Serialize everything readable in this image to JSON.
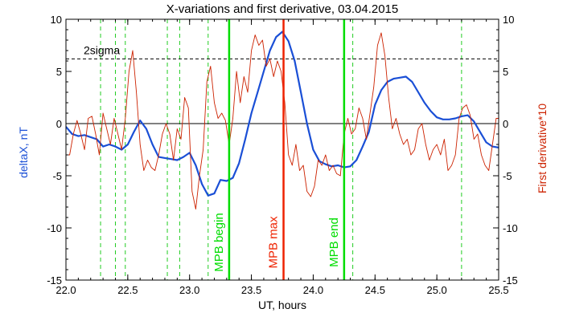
{
  "chart_data": {
    "type": "line",
    "title": "X-variations and first derivative, 03.04.2015",
    "xlabel": "UT, hours",
    "ylabel_left": "deltaX, nT",
    "ylabel_right": "First derivative*10",
    "xlim": [
      22.0,
      25.5
    ],
    "ylim_left": [
      -15,
      10
    ],
    "ylim_right": [
      -15,
      10
    ],
    "x_ticks": [
      22.0,
      22.5,
      23.0,
      23.5,
      24.0,
      24.5,
      25.0,
      25.5
    ],
    "x_tick_labels": [
      "22.0",
      "22.5",
      "23.0",
      "23.5",
      "24.0",
      "24.5",
      "25.0",
      "25.5"
    ],
    "y_ticks": [
      -15,
      -10,
      -5,
      0,
      5,
      10
    ],
    "y_tick_labels": [
      "-15",
      "-10",
      "-5",
      "0",
      "5",
      "10"
    ],
    "colors": {
      "deltaX": "#1a4fd6",
      "derivative": "#cc2200",
      "mpb_edge": "#00dd00",
      "mpb_max": "#ee2200",
      "dashed_green": "#22cc22"
    },
    "threshold": {
      "label": "2sigma",
      "value": 6.2
    },
    "zero_line": 0,
    "dashed_green_x": [
      22.28,
      22.4,
      22.48,
      22.82,
      22.92,
      23.15,
      24.32,
      25.2
    ],
    "markers": [
      {
        "x": 23.32,
        "label": "MPB begin",
        "color": "#00dd00"
      },
      {
        "x": 23.76,
        "label": "MPB max",
        "color": "#ee2200"
      },
      {
        "x": 24.25,
        "label": "MPB end",
        "color": "#00dd00"
      }
    ],
    "series": [
      {
        "key": "deltaX",
        "axis": "left",
        "x": [
          22.0,
          22.05,
          22.1,
          22.15,
          22.2,
          22.25,
          22.3,
          22.35,
          22.4,
          22.45,
          22.5,
          22.55,
          22.6,
          22.65,
          22.7,
          22.75,
          22.8,
          22.85,
          22.9,
          22.95,
          23.0,
          23.05,
          23.1,
          23.15,
          23.2,
          23.25,
          23.3,
          23.35,
          23.4,
          23.45,
          23.5,
          23.55,
          23.6,
          23.65,
          23.7,
          23.75,
          23.8,
          23.85,
          23.9,
          23.95,
          24.0,
          24.05,
          24.1,
          24.15,
          24.2,
          24.25,
          24.3,
          24.35,
          24.4,
          24.45,
          24.5,
          24.55,
          24.6,
          24.65,
          24.7,
          24.75,
          24.8,
          24.85,
          24.9,
          24.95,
          25.0,
          25.05,
          25.1,
          25.15,
          25.2,
          25.25,
          25.3,
          25.35,
          25.4,
          25.45,
          25.5
        ],
        "y": [
          -0.3,
          -1.0,
          -1.2,
          -1.1,
          -1.3,
          -1.5,
          -2.2,
          -2.0,
          -2.2,
          -2.5,
          -2.0,
          -0.8,
          0.3,
          -0.5,
          -2.0,
          -3.2,
          -3.3,
          -3.4,
          -3.5,
          -3.2,
          -2.8,
          -4.0,
          -5.8,
          -6.9,
          -6.7,
          -5.4,
          -5.5,
          -5.2,
          -3.8,
          -1.5,
          1.0,
          3.0,
          5.0,
          7.0,
          8.3,
          8.8,
          7.9,
          6.0,
          3.0,
          0.0,
          -2.5,
          -3.6,
          -3.9,
          -4.1,
          -4.0,
          -4.2,
          -4.1,
          -3.5,
          -2.2,
          -0.8,
          1.8,
          3.2,
          4.0,
          4.3,
          4.4,
          4.5,
          4.0,
          3.0,
          2.0,
          1.2,
          0.6,
          0.4,
          0.4,
          0.5,
          0.7,
          0.8,
          0.2,
          -0.8,
          -1.8,
          -2.2,
          -2.3
        ]
      },
      {
        "key": "derivative",
        "axis": "right",
        "x": [
          22.0,
          22.03,
          22.06,
          22.09,
          22.12,
          22.15,
          22.18,
          22.21,
          22.24,
          22.27,
          22.3,
          22.33,
          22.36,
          22.39,
          22.42,
          22.45,
          22.48,
          22.51,
          22.54,
          22.57,
          22.6,
          22.63,
          22.66,
          22.69,
          22.72,
          22.75,
          22.78,
          22.81,
          22.84,
          22.87,
          22.9,
          22.93,
          22.96,
          22.99,
          23.02,
          23.05,
          23.08,
          23.11,
          23.14,
          23.17,
          23.2,
          23.23,
          23.26,
          23.29,
          23.32,
          23.35,
          23.38,
          23.41,
          23.44,
          23.47,
          23.5,
          23.53,
          23.56,
          23.59,
          23.62,
          23.65,
          23.68,
          23.71,
          23.74,
          23.77,
          23.8,
          23.83,
          23.86,
          23.89,
          23.92,
          23.95,
          23.98,
          24.01,
          24.04,
          24.07,
          24.1,
          24.13,
          24.16,
          24.19,
          24.22,
          24.25,
          24.28,
          24.31,
          24.34,
          24.37,
          24.4,
          24.43,
          24.46,
          24.49,
          24.52,
          24.55,
          24.58,
          24.61,
          24.64,
          24.67,
          24.7,
          24.73,
          24.76,
          24.79,
          24.82,
          24.85,
          24.88,
          24.91,
          24.94,
          24.97,
          25.0,
          25.03,
          25.06,
          25.09,
          25.12,
          25.15,
          25.18,
          25.21,
          25.24,
          25.27,
          25.3,
          25.33,
          25.36,
          25.39,
          25.42,
          25.45,
          25.48,
          25.5
        ],
        "y": [
          -3.0,
          -3.0,
          -1.0,
          0.3,
          -1.0,
          -2.5,
          0.5,
          0.7,
          -1.0,
          -3.0,
          1.0,
          -0.5,
          -2.0,
          0.5,
          -1.0,
          -2.5,
          0.5,
          5.0,
          7.0,
          3.0,
          -2.0,
          -4.5,
          -3.5,
          -4.2,
          -4.5,
          -3.0,
          -1.0,
          0.0,
          -1.0,
          -3.5,
          -0.5,
          -1.5,
          2.5,
          1.5,
          -6.5,
          -8.2,
          -5.0,
          -2.5,
          4.0,
          5.5,
          2.0,
          0.5,
          1.0,
          0.3,
          -2.0,
          0.5,
          5.0,
          2.0,
          4.5,
          3.0,
          7.0,
          8.5,
          7.5,
          8.0,
          5.5,
          6.2,
          4.5,
          6.0,
          5.0,
          2.0,
          -3.0,
          -4.0,
          -2.0,
          -4.5,
          -4.0,
          -6.5,
          -7.0,
          -6.0,
          -3.5,
          -4.0,
          -3.0,
          -4.5,
          -4.0,
          -4.8,
          -5.0,
          -1.0,
          0.5,
          -1.0,
          -0.5,
          1.5,
          0.5,
          -1.5,
          1.0,
          3.5,
          7.5,
          8.7,
          6.5,
          2.5,
          -0.5,
          0.5,
          -1.0,
          -2.0,
          -1.5,
          -3.0,
          -2.5,
          -0.5,
          0.0,
          -2.0,
          -3.5,
          -2.5,
          -2.0,
          -3.0,
          -1.5,
          -4.5,
          -4.0,
          -3.0,
          0.5,
          1.5,
          1.8,
          0.8,
          -1.5,
          -1.0,
          -3.0,
          -4.0,
          -4.5,
          -2.0,
          0.5,
          0.5
        ]
      }
    ]
  }
}
